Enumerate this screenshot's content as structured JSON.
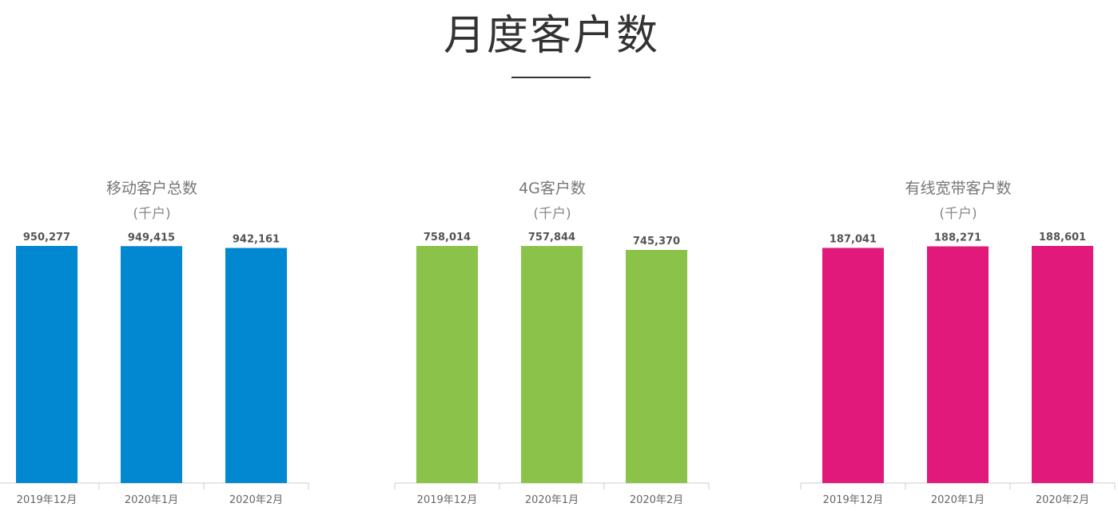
{
  "title": "月度客户数",
  "chart_data": [
    {
      "type": "bar",
      "title": "移动客户总数",
      "unit": "(千户)",
      "categories": [
        "2019年12月",
        "2020年1月",
        "2020年2月"
      ],
      "values": [
        950277,
        949415,
        942161
      ],
      "labels": [
        "950,277",
        "949,415",
        "942,161"
      ],
      "color": "#0288d1"
    },
    {
      "type": "bar",
      "title": "4G客户数",
      "unit": "(千户)",
      "categories": [
        "2019年12月",
        "2020年1月",
        "2020年2月"
      ],
      "values": [
        758014,
        757844,
        745370
      ],
      "labels": [
        "758,014",
        "757,844",
        "745,370"
      ],
      "color": "#8bc34a"
    },
    {
      "type": "bar",
      "title": "有线宽带客户数",
      "unit": "(千户)",
      "categories": [
        "2019年12月",
        "2020年1月",
        "2020年2月"
      ],
      "values": [
        187041,
        188271,
        188601
      ],
      "labels": [
        "187,041",
        "188,271",
        "188,601"
      ],
      "color": "#e0197a"
    }
  ]
}
